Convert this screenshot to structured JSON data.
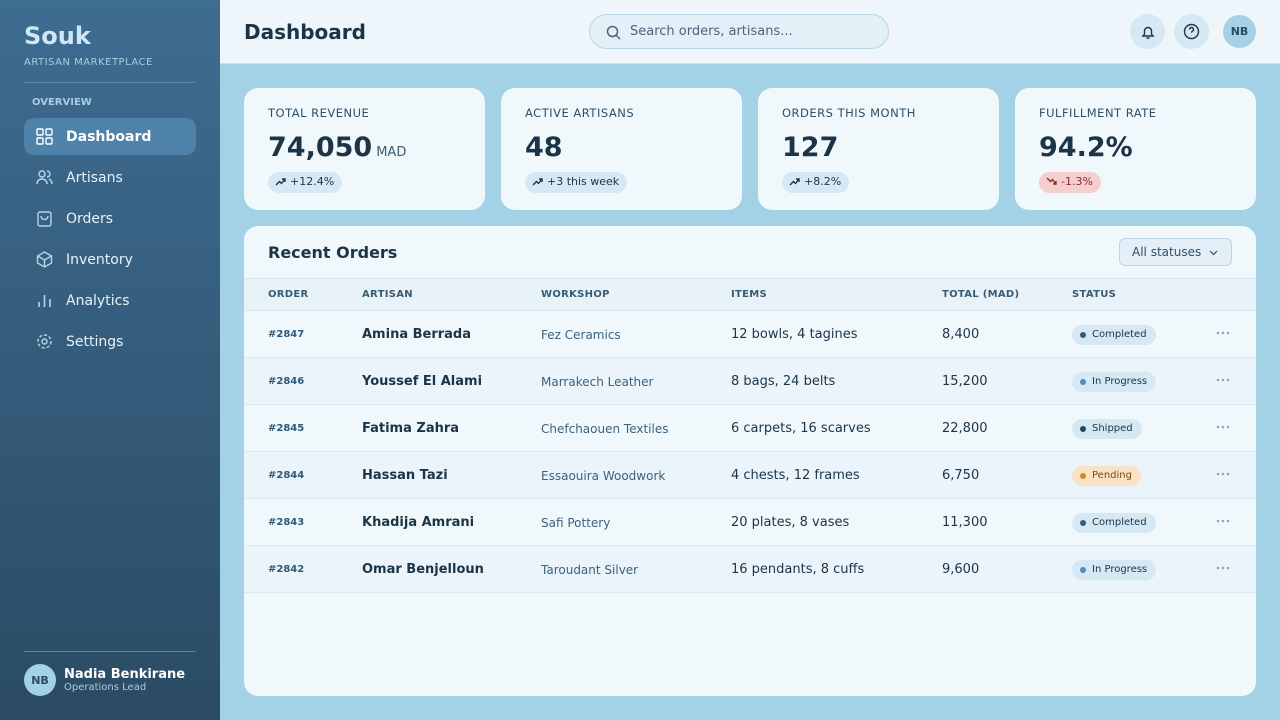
{
  "sidebar": {
    "brand": "Souk",
    "tagline": "ARTISAN MARKETPLACE",
    "section": "OVERVIEW",
    "nav": [
      "Dashboard",
      "Artisans",
      "Orders",
      "Inventory",
      "Analytics",
      "Settings"
    ],
    "user": {
      "initials": "NB",
      "name": "Nadia Benkirane",
      "role": "Operations Lead"
    }
  },
  "header": {
    "title": "Dashboard",
    "search_placeholder": "Search orders, artisans...",
    "avatar": "NB"
  },
  "stats": [
    {
      "label": "TOTAL REVENUE",
      "value": "74,050",
      "unit": "MAD",
      "change": "+12.4%"
    },
    {
      "label": "ACTIVE ARTISANS",
      "value": "48",
      "change": "+3 this week"
    },
    {
      "label": "ORDERS THIS MONTH",
      "value": "127",
      "change": "+8.2%"
    },
    {
      "label": "FULFILLMENT RATE",
      "value": "94.2%",
      "change": "-1.3%"
    }
  ],
  "orders": {
    "title": "Recent Orders",
    "filter": "All statuses",
    "columns": [
      "ORDER",
      "ARTISAN",
      "WORKSHOP",
      "ITEMS",
      "TOTAL (MAD)",
      "STATUS"
    ],
    "rows": [
      {
        "order": "#2847",
        "artisan": "Amina Berrada",
        "workshop": "Fez Ceramics",
        "items": "12 bowls, 4 tagines",
        "total": "8,400",
        "status": "Completed",
        "status_color": "#2f5d7c"
      },
      {
        "order": "#2846",
        "artisan": "Youssef El Alami",
        "workshop": "Marrakech Leather",
        "items": "8 bags, 24 belts",
        "total": "15,200",
        "status": "In Progress",
        "status_color": "#4a8fbf"
      },
      {
        "order": "#2845",
        "artisan": "Fatima Zahra",
        "workshop": "Chefchaouen Textiles",
        "items": "6 carpets, 16 scarves",
        "total": "22,800",
        "status": "Shipped",
        "status_color": "#1f4a66"
      },
      {
        "order": "#2844",
        "artisan": "Hassan Tazi",
        "workshop": "Essaouira Woodwork",
        "items": "4 chests, 12 frames",
        "total": "6,750",
        "status": "Pending",
        "status_color": "#d08a2e"
      },
      {
        "order": "#2843",
        "artisan": "Khadija Amrani",
        "workshop": "Safi Pottery",
        "items": "20 plates, 8 vases",
        "total": "11,300",
        "status": "Completed",
        "status_color": "#2f5d7c"
      },
      {
        "order": "#2842",
        "artisan": "Omar Benjelloun",
        "workshop": "Taroudant Silver",
        "items": "16 pendants, 8 cuffs",
        "total": "9,600",
        "status": "In Progress",
        "status_color": "#4a8fbf"
      }
    ]
  }
}
